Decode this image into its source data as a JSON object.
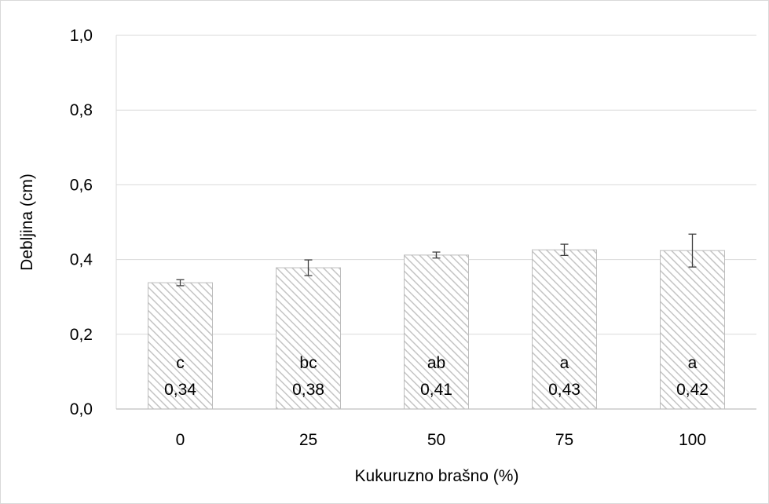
{
  "chart_data": {
    "type": "bar",
    "title": "",
    "xlabel": "Kukuruzno brašno (%)",
    "ylabel": "Debljina (cm)",
    "ylim": [
      0,
      1.0
    ],
    "y_ticks": [
      "0,0",
      "0,2",
      "0,4",
      "0,6",
      "0,8",
      "1,0"
    ],
    "grid": true,
    "categories": [
      "0",
      "25",
      "50",
      "75",
      "100"
    ],
    "values": [
      0.338,
      0.378,
      0.412,
      0.426,
      0.424
    ],
    "errors": [
      0.008,
      0.021,
      0.008,
      0.015,
      0.044
    ],
    "letters": [
      "c",
      "bc",
      "ab",
      "a",
      "a"
    ],
    "value_labels": [
      "0,34",
      "0,38",
      "0,41",
      "0,43",
      "0,42"
    ],
    "bar_fill": "diagonal-hatch",
    "colors": {
      "bar_stroke": "#b8b8b8",
      "hatch": "#c8c8c8",
      "grid": "#d9d9d9",
      "axis": "#bfbfbf",
      "error": "#404040"
    }
  }
}
